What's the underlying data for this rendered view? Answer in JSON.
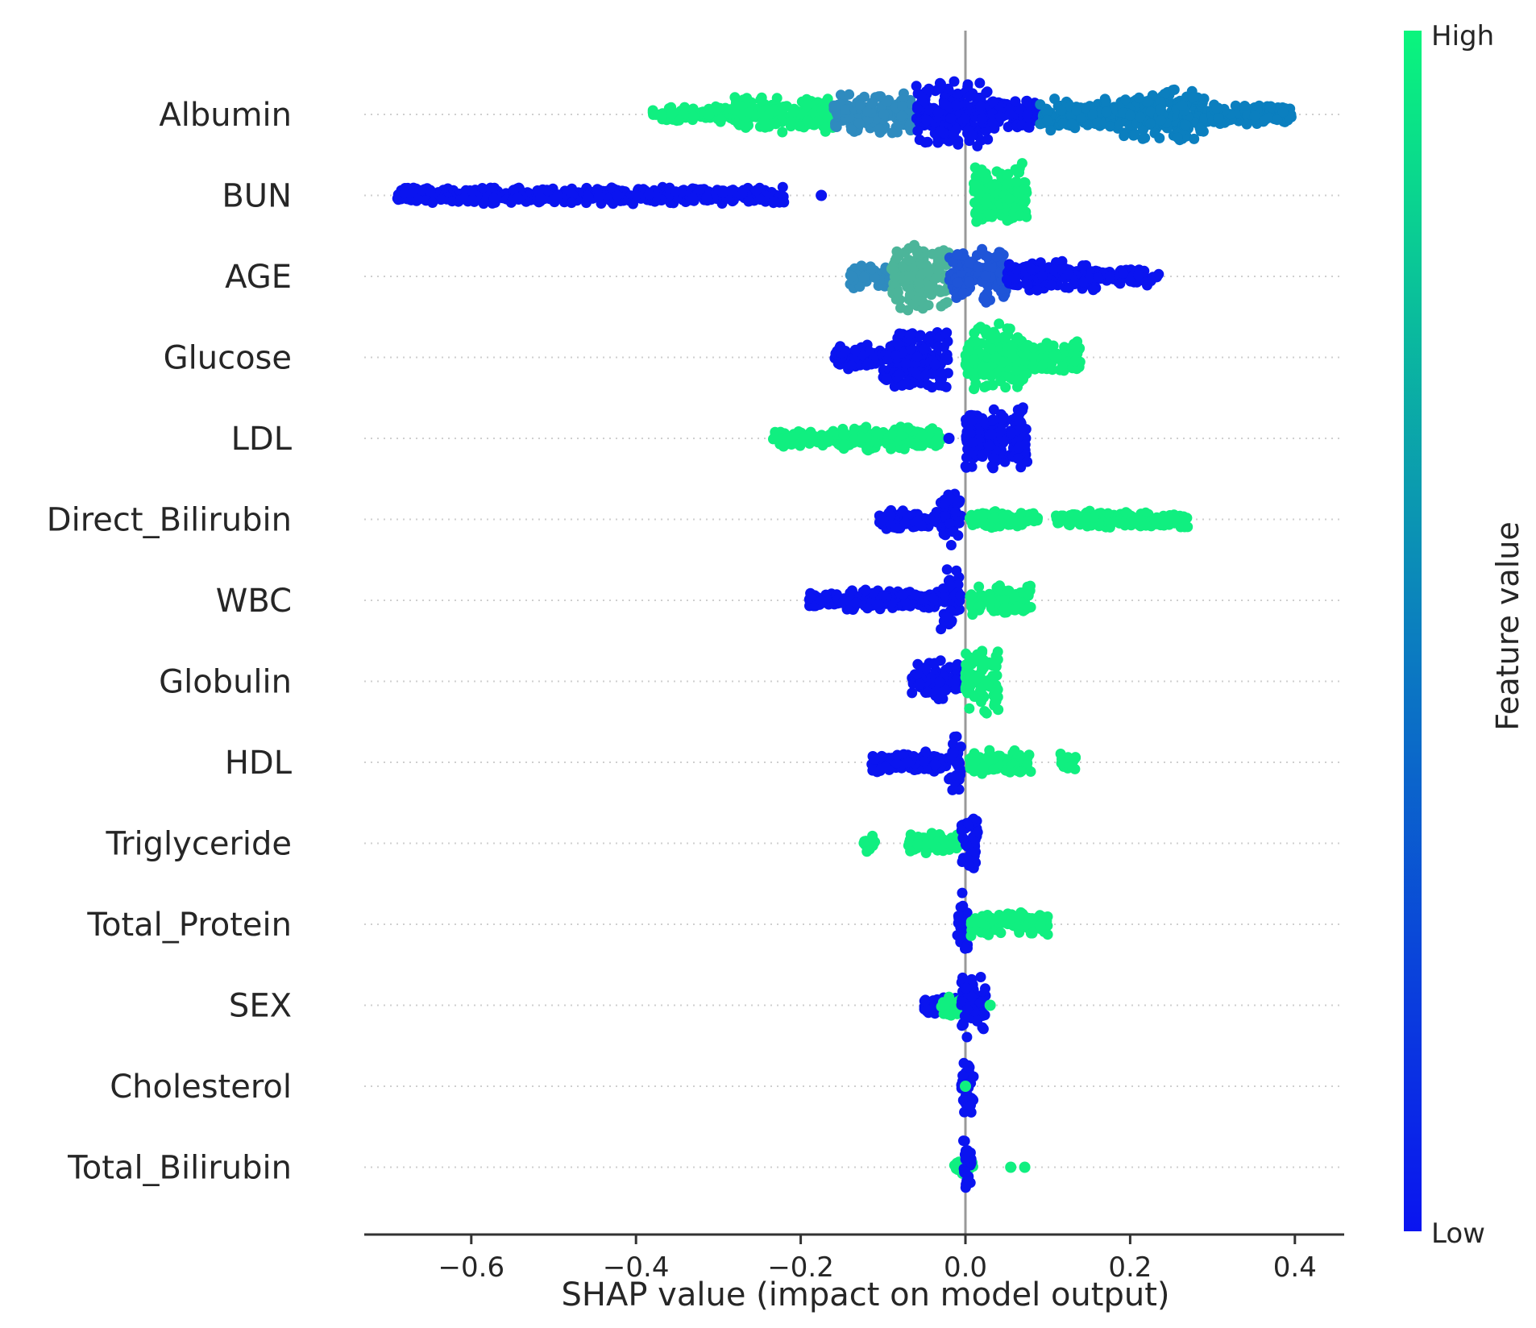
{
  "chart_data": {
    "type": "scatter",
    "subtype": "shap-beeswarm",
    "title": "",
    "xlabel": "SHAP value (impact on model output)",
    "ylabel": "",
    "xlim": [
      -0.75,
      0.45
    ],
    "xticks": [
      -0.6,
      -0.4,
      -0.2,
      0.0,
      0.2,
      0.4
    ],
    "xtick_labels": [
      "−0.6",
      "−0.4",
      "−0.2",
      "0.0",
      "0.2",
      "0.4"
    ],
    "colorbar": {
      "title": "Feature value",
      "high_label": "High",
      "low_label": "Low",
      "low_color": "#0a14f0",
      "high_color": "#0af57d"
    },
    "features": [
      {
        "name": "Albumin",
        "segments": [
          {
            "from": -0.38,
            "to": -0.28,
            "spread": 0.25,
            "color": "#10ef80"
          },
          {
            "from": -0.28,
            "to": -0.16,
            "spread": 0.5,
            "color": "#10ef80"
          },
          {
            "from": -0.16,
            "to": -0.06,
            "spread": 0.6,
            "color": "#2f8bbf"
          },
          {
            "from": -0.06,
            "to": 0.03,
            "spread": 0.95,
            "color": "#0a14f0"
          },
          {
            "from": 0.03,
            "to": 0.09,
            "spread": 0.45,
            "color": "#0a14f0"
          },
          {
            "from": 0.09,
            "to": 0.19,
            "spread": 0.45,
            "color": "#0b7fbf"
          },
          {
            "from": 0.19,
            "to": 0.29,
            "spread": 0.75,
            "color": "#0b7fbf"
          },
          {
            "from": 0.29,
            "to": 0.4,
            "spread": 0.3,
            "color": "#0b7fbf"
          }
        ],
        "outliers": []
      },
      {
        "name": "BUN",
        "segments": [
          {
            "from": -0.69,
            "to": -0.22,
            "spread": 0.25,
            "color": "#0a14f0"
          },
          {
            "from": 0.01,
            "to": 0.075,
            "spread": 0.95,
            "color": "#10ef80"
          }
        ],
        "outliers": [
          {
            "x": -0.175,
            "color": "#0a14f0"
          }
        ]
      },
      {
        "name": "AGE",
        "segments": [
          {
            "from": -0.14,
            "to": -0.09,
            "spread": 0.35,
            "color": "#2f8bbf"
          },
          {
            "from": -0.09,
            "to": -0.02,
            "spread": 0.95,
            "color": "#4cb59a"
          },
          {
            "from": -0.02,
            "to": 0.05,
            "spread": 0.75,
            "color": "#1f55d8"
          },
          {
            "from": 0.05,
            "to": 0.16,
            "spread": 0.45,
            "color": "#0a14f0"
          },
          {
            "from": 0.16,
            "to": 0.235,
            "spread": 0.25,
            "color": "#0a14f0"
          }
        ],
        "outliers": []
      },
      {
        "name": "Glucose",
        "segments": [
          {
            "from": -0.16,
            "to": -0.1,
            "spread": 0.35,
            "color": "#0a14f0"
          },
          {
            "from": -0.1,
            "to": -0.02,
            "spread": 0.95,
            "color": "#0a14f0"
          },
          {
            "from": 0.0,
            "to": 0.07,
            "spread": 0.95,
            "color": "#10ef80"
          },
          {
            "from": 0.07,
            "to": 0.14,
            "spread": 0.45,
            "color": "#10ef80"
          }
        ],
        "outliers": []
      },
      {
        "name": "LDL",
        "segments": [
          {
            "from": -0.235,
            "to": -0.15,
            "spread": 0.25,
            "color": "#10ef80"
          },
          {
            "from": -0.15,
            "to": -0.03,
            "spread": 0.35,
            "color": "#10ef80"
          },
          {
            "from": 0.0,
            "to": 0.075,
            "spread": 0.95,
            "color": "#0a14f0"
          }
        ],
        "outliers": [
          {
            "x": -0.02,
            "color": "#0a14f0"
          }
        ]
      },
      {
        "name": "Direct_Bilirubin",
        "segments": [
          {
            "from": -0.105,
            "to": -0.03,
            "spread": 0.3,
            "color": "#0a14f0"
          },
          {
            "from": -0.03,
            "to": -0.005,
            "spread": 0.9,
            "color": "#0a14f0"
          },
          {
            "from": 0.005,
            "to": 0.09,
            "spread": 0.25,
            "color": "#10ef80"
          },
          {
            "from": 0.11,
            "to": 0.27,
            "spread": 0.25,
            "color": "#10ef80"
          }
        ],
        "outliers": []
      },
      {
        "name": "WBC",
        "segments": [
          {
            "from": -0.19,
            "to": -0.03,
            "spread": 0.3,
            "color": "#0a14f0"
          },
          {
            "from": -0.03,
            "to": -0.005,
            "spread": 0.9,
            "color": "#0a14f0"
          },
          {
            "from": 0.005,
            "to": 0.08,
            "spread": 0.45,
            "color": "#10ef80"
          }
        ],
        "outliers": []
      },
      {
        "name": "Globulin",
        "segments": [
          {
            "from": -0.065,
            "to": -0.005,
            "spread": 0.6,
            "color": "#0a14f0"
          },
          {
            "from": 0.0,
            "to": 0.04,
            "spread": 0.9,
            "color": "#10ef80"
          }
        ],
        "outliers": []
      },
      {
        "name": "HDL",
        "segments": [
          {
            "from": -0.115,
            "to": -0.02,
            "spread": 0.3,
            "color": "#0a14f0"
          },
          {
            "from": -0.02,
            "to": -0.005,
            "spread": 0.9,
            "color": "#0a14f0"
          },
          {
            "from": 0.005,
            "to": 0.08,
            "spread": 0.35,
            "color": "#10ef80"
          },
          {
            "from": 0.115,
            "to": 0.135,
            "spread": 0.25,
            "color": "#10ef80"
          }
        ],
        "outliers": []
      },
      {
        "name": "Triglyceride",
        "segments": [
          {
            "from": -0.125,
            "to": -0.11,
            "spread": 0.25,
            "color": "#10ef80"
          },
          {
            "from": -0.07,
            "to": -0.005,
            "spread": 0.3,
            "color": "#10ef80"
          },
          {
            "from": -0.005,
            "to": 0.015,
            "spread": 0.9,
            "color": "#0a14f0"
          }
        ],
        "outliers": []
      },
      {
        "name": "Total_Protein",
        "segments": [
          {
            "from": -0.01,
            "to": 0.005,
            "spread": 0.9,
            "color": "#0a14f0"
          },
          {
            "from": 0.005,
            "to": 0.1,
            "spread": 0.35,
            "color": "#10ef80"
          }
        ],
        "outliers": []
      },
      {
        "name": "SEX",
        "segments": [
          {
            "from": -0.05,
            "to": -0.01,
            "spread": 0.25,
            "color": "#0a14f0"
          },
          {
            "from": -0.03,
            "to": 0.0,
            "spread": 0.35,
            "color": "#10ef80"
          },
          {
            "from": -0.005,
            "to": 0.025,
            "spread": 0.9,
            "color": "#0a14f0"
          }
        ],
        "outliers": [
          {
            "x": 0.03,
            "color": "#10ef80"
          }
        ]
      },
      {
        "name": "Cholesterol",
        "segments": [
          {
            "from": -0.005,
            "to": 0.01,
            "spread": 0.9,
            "color": "#0a14f0"
          }
        ],
        "outliers": [
          {
            "x": 0.0,
            "color": "#10ef80"
          }
        ]
      },
      {
        "name": "Total_Bilirubin",
        "segments": [
          {
            "from": -0.015,
            "to": 0.01,
            "spread": 0.25,
            "color": "#10ef80"
          },
          {
            "from": -0.003,
            "to": 0.008,
            "spread": 0.9,
            "color": "#0a14f0"
          }
        ],
        "outliers": [
          {
            "x": 0.055,
            "color": "#10ef80"
          },
          {
            "x": 0.072,
            "color": "#10ef80"
          }
        ]
      }
    ]
  }
}
